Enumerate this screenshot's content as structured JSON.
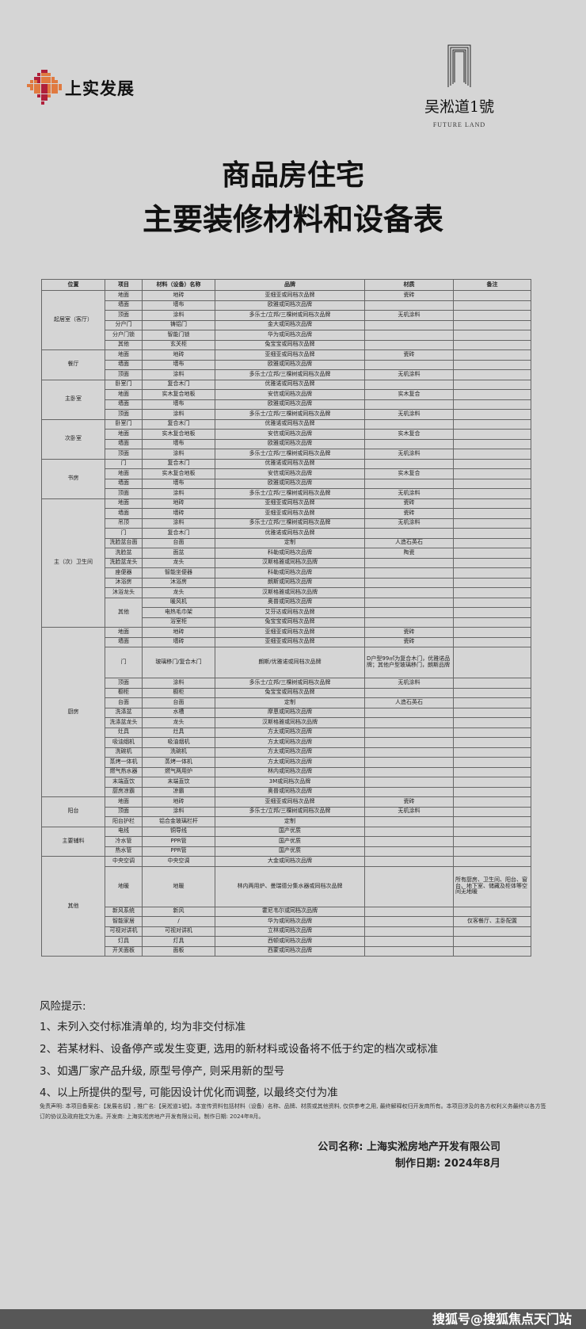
{
  "header": {
    "left_logo_text": "上实发展",
    "right_logo_text": "吴淞道1號",
    "right_logo_subtitle": "FUTURE LAND",
    "title_line1": "商品房住宅",
    "title_line2": "主要装修材料和设备表"
  },
  "colors": {
    "background": "#d5d5d5",
    "logo_red": "#b0203a",
    "logo_orange": "#e07a40",
    "bottom_bar": "#575757"
  },
  "table": {
    "columns": [
      "位置",
      "项目",
      "材料（设备）名称",
      "品牌",
      "材质",
      "备注"
    ],
    "groups": [
      {
        "location": "起居室（客厅）",
        "rows": [
          [
            "地面",
            "地砖",
            "亚细亚或同档次品牌",
            "瓷砖",
            ""
          ],
          [
            "墙面",
            "墙布",
            "欧雅或同档次品牌",
            "",
            ""
          ],
          [
            "顶面",
            "涂料",
            "多乐士/立邦/三棵树或同档次品牌",
            "无机涂料",
            ""
          ],
          [
            "分户门",
            "铸铝门",
            "金大或同档次品牌",
            "",
            ""
          ],
          [
            "分户门锁",
            "智能门锁",
            "华为或同档次品牌",
            "",
            ""
          ],
          [
            "其他",
            "玄关柜",
            "兔宝宝或同档次品牌",
            "",
            ""
          ]
        ]
      },
      {
        "location": "餐厅",
        "rows": [
          [
            "地面",
            "地砖",
            "亚细亚或同档次品牌",
            "瓷砖",
            ""
          ],
          [
            "墙面",
            "墙布",
            "欧雅或同档次品牌",
            "",
            ""
          ],
          [
            "顶面",
            "涂料",
            "多乐士/立邦/三棵树或同档次品牌",
            "无机涂料",
            ""
          ]
        ]
      },
      {
        "location": "主卧室",
        "rows": [
          [
            "卧室门",
            "复合木门",
            "优雅诺或同档次品牌",
            "",
            ""
          ],
          [
            "地面",
            "实木复合地板",
            "安信或同档次品牌",
            "实木复合",
            ""
          ],
          [
            "墙面",
            "墙布",
            "欧雅或同档次品牌",
            "",
            ""
          ],
          [
            "顶面",
            "涂料",
            "多乐士/立邦/三棵树或同档次品牌",
            "无机涂料",
            ""
          ]
        ]
      },
      {
        "location": "次卧室",
        "rows": [
          [
            "卧室门",
            "复合木门",
            "优雅诺或同档次品牌",
            "",
            ""
          ],
          [
            "地面",
            "实木复合地板",
            "安信或同档次品牌",
            "实木复合",
            ""
          ],
          [
            "墙面",
            "墙布",
            "欧雅或同档次品牌",
            "",
            ""
          ],
          [
            "顶面",
            "涂料",
            "多乐士/立邦/三棵树或同档次品牌",
            "无机涂料",
            ""
          ]
        ]
      },
      {
        "location": "书房",
        "rows": [
          [
            "门",
            "复合木门",
            "优雅诺或同档次品牌",
            "",
            ""
          ],
          [
            "地面",
            "实木复合地板",
            "安信或同档次品牌",
            "实木复合",
            ""
          ],
          [
            "墙面",
            "墙布",
            "欧雅或同档次品牌",
            "",
            ""
          ],
          [
            "顶面",
            "涂料",
            "多乐士/立邦/三棵树或同档次品牌",
            "无机涂料",
            ""
          ]
        ]
      },
      {
        "location": "主（次）卫生间",
        "merged_item": {
          "start": 10,
          "count": 3
        },
        "rows": [
          [
            "地面",
            "地砖",
            "亚细亚或同档次品牌",
            "瓷砖",
            ""
          ],
          [
            "墙面",
            "墙砖",
            "亚细亚或同档次品牌",
            "瓷砖",
            ""
          ],
          [
            "吊顶",
            "涂料",
            "多乐士/立邦/三棵树或同档次品牌",
            "无机涂料",
            ""
          ],
          [
            "门",
            "复合木门",
            "优雅诺或同档次品牌",
            "",
            ""
          ],
          [
            "洗脸盆台面",
            "台面",
            "定制",
            "人造石英石",
            ""
          ],
          [
            "洗脸盆",
            "面盆",
            "科勒或同档次品牌",
            "陶瓷",
            ""
          ],
          [
            "洗脸盆龙头",
            "龙头",
            "汉斯格雅或同档次品牌",
            "",
            ""
          ],
          [
            "座便器",
            "智能坐便器",
            "科勒或同档次品牌",
            "",
            ""
          ],
          [
            "沐浴房",
            "沐浴房",
            "朗斯或同档次品牌",
            "",
            ""
          ],
          [
            "沐浴龙头",
            "龙头",
            "汉斯格雅或同档次品牌",
            "",
            ""
          ],
          [
            "其他",
            "暖风机",
            "奥普或同档次品牌",
            "",
            ""
          ],
          [
            "",
            "电热毛巾架",
            "艾芬达或同档次品牌",
            "",
            ""
          ],
          [
            "",
            "浴室柜",
            "兔宝宝或同档次品牌",
            "",
            ""
          ]
        ]
      },
      {
        "location": "厨房",
        "tall_row": 2,
        "rows": [
          [
            "地面",
            "地砖",
            "亚细亚或同档次品牌",
            "瓷砖",
            ""
          ],
          [
            "墙面",
            "墙砖",
            "亚细亚或同档次品牌",
            "瓷砖",
            ""
          ],
          [
            "门",
            "玻璃移门/复合木门",
            "朗斯/优雅诺或同档次品牌",
            "D户型99㎡为复合木门，优雅诺品牌；其他户型玻璃移门，朗斯品牌",
            ""
          ],
          [
            "顶面",
            "涂料",
            "多乐士/立邦/三棵树或同档次品牌",
            "无机涂料",
            ""
          ],
          [
            "橱柜",
            "橱柜",
            "兔宝宝或同档次品牌",
            "",
            ""
          ],
          [
            "台面",
            "台面",
            "定制",
            "人造石英石",
            ""
          ],
          [
            "洗涤盆",
            "水槽",
            "摩恩或同档次品牌",
            "",
            ""
          ],
          [
            "洗涤盆龙头",
            "龙头",
            "汉斯格雅或同档次品牌",
            "",
            ""
          ],
          [
            "灶具",
            "灶具",
            "方太或同档次品牌",
            "",
            ""
          ],
          [
            "吸油烟机",
            "吸油烟机",
            "方太或同档次品牌",
            "",
            ""
          ],
          [
            "洗碗机",
            "洗碗机",
            "方太或同档次品牌",
            "",
            ""
          ],
          [
            "蒸烤一体机",
            "蒸烤一体机",
            "方太或同档次品牌",
            "",
            ""
          ],
          [
            "燃气热水器",
            "燃气两用炉",
            "林内或同档次品牌",
            "",
            ""
          ],
          [
            "末端直饮",
            "末端直饮",
            "3M或同档次品牌",
            "",
            ""
          ],
          [
            "厨房凉霸",
            "凉霸",
            "奥普或同档次品牌",
            "",
            ""
          ]
        ]
      },
      {
        "location": "阳台",
        "rows": [
          [
            "地面",
            "地砖",
            "亚细亚或同档次品牌",
            "瓷砖",
            ""
          ],
          [
            "顶面",
            "涂料",
            "多乐士/立邦/三棵树或同档次品牌",
            "无机涂料",
            ""
          ],
          [
            "阳台护栏",
            "铝合金玻璃栏杆",
            "定制",
            "",
            ""
          ]
        ]
      },
      {
        "location": "主要辅料",
        "rows": [
          [
            "电线",
            "铜导线",
            "国产优质",
            "",
            ""
          ],
          [
            "冷水管",
            "PPR管",
            "国产优质",
            "",
            ""
          ],
          [
            "热水管",
            "PPR管",
            "国产优质",
            "",
            ""
          ]
        ]
      },
      {
        "location": "其他",
        "xtall_row": 1,
        "rows": [
          [
            "中央空调",
            "中央空调",
            "大金或同档次品牌",
            "",
            ""
          ],
          [
            "地暖",
            "地暖",
            "林内两用炉、曼瑞德分集水器或同档次品牌",
            "",
            "所有厨房、卫生间、阳台、窗台、地下室、储藏及柜体等空间无地暖"
          ],
          [
            "新风系统",
            "新风",
            "霍尼韦尔或同档次品牌",
            "",
            ""
          ],
          [
            "智能家居",
            "/",
            "华为或同档次品牌",
            "",
            "仅客餐厅、主卧配置"
          ],
          [
            "可视对讲机",
            "可视对讲机",
            "立林或同档次品牌",
            "",
            ""
          ],
          [
            "灯具",
            "灯具",
            "西顿或同档次品牌",
            "",
            ""
          ],
          [
            "开关面板",
            "面板",
            "西蒙或同档次品牌",
            "",
            ""
          ]
        ]
      }
    ]
  },
  "risk": {
    "heading": "风险提示:",
    "items": [
      "1、未列入交付标准清单的, 均为非交付标准",
      "2、若某材料、设备停产或发生变更, 选用的新材料或设备将不低于约定的档次或标准",
      "3、如遇厂家产品升级, 原型号停产, 则采用新的型号",
      "4、以上所提供的型号, 可能因设计优化而调整, 以最终交付为准"
    ]
  },
  "disclaimer": "免责声明: 本项目备案名:【发展名邸】, 推广名:【吴淞道1號】。本宣传资料包括材料（设备）名称、品牌、材质或其他资料, 仅供参考之用, 最终解释权归开发商所有。本项目涉及的各方权利义务最终以各方签订的协议及政府批文为准。开发商: 上海实淞房地产开发有限公司。制作日期: 2024年8月。",
  "footer": {
    "company": "公司名称: 上海实淞房地产开发有限公司",
    "date": "制作日期: 2024年8月"
  },
  "watermark": "搜狐号@搜狐焦点天门站"
}
